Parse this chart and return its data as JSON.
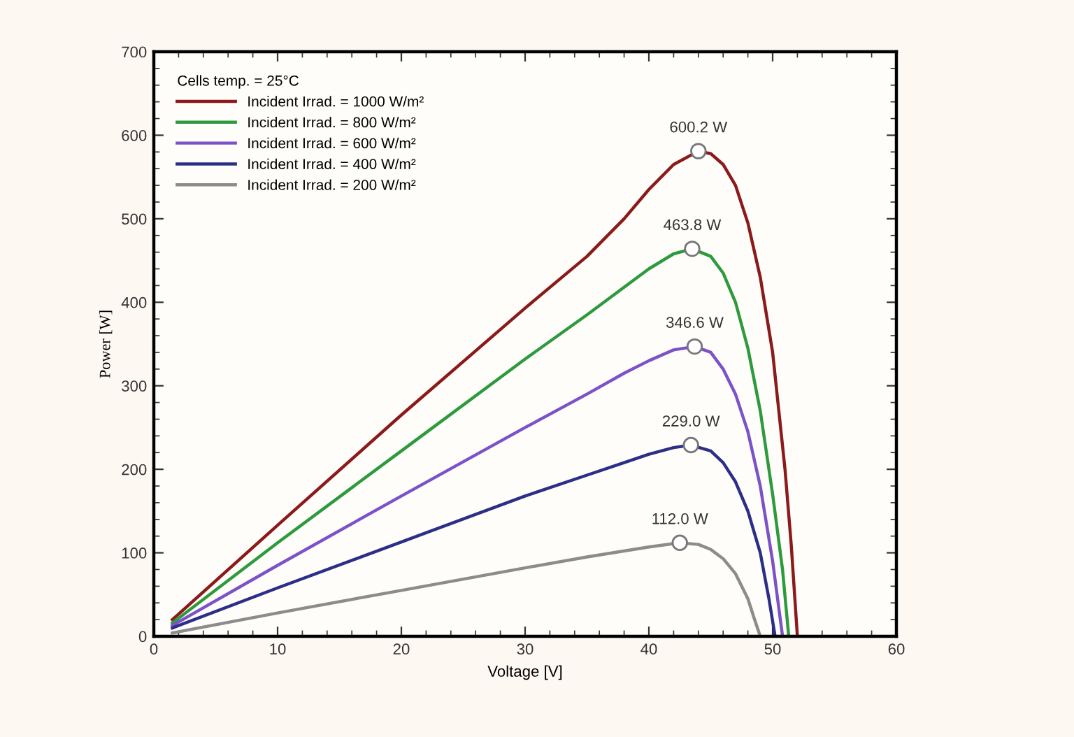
{
  "chart_data": {
    "type": "line",
    "xlabel": "Voltage [V]",
    "ylabel": "Power [W]",
    "legend_title": "Cells temp. = 25°C",
    "legend": "top left",
    "grid": false,
    "marker": "none",
    "line_style": "solid",
    "xlim": [
      0,
      60
    ],
    "xticks": [
      0,
      10,
      20,
      30,
      40,
      50,
      60
    ],
    "ylim": [
      0,
      700
    ],
    "yticks": [
      0,
      100,
      200,
      300,
      400,
      500,
      600,
      700
    ],
    "series": [
      {
        "name": "Incident Irrad. = 1000 W/m²",
        "color": "#8b1a1a",
        "x": [
          1.5,
          10,
          20,
          30,
          35,
          38,
          40,
          42,
          44,
          45,
          46,
          47,
          48,
          49,
          50,
          51,
          51.5,
          52
        ],
        "values": [
          20,
          133,
          265,
          393,
          455,
          500,
          535,
          565,
          581,
          578,
          565,
          540,
          495,
          430,
          340,
          200,
          110,
          0
        ]
      },
      {
        "name": "Incident Irrad. = 800 W/m²",
        "color": "#2e9a3e",
        "x": [
          1.5,
          10,
          20,
          30,
          35,
          38,
          40,
          42,
          43.5,
          45,
          46,
          47,
          48,
          49,
          50,
          50.8,
          51.3
        ],
        "values": [
          16,
          112,
          222,
          332,
          385,
          418,
          440,
          458,
          464,
          455,
          435,
          400,
          345,
          270,
          170,
          80,
          0
        ]
      },
      {
        "name": "Incident Irrad. = 600 W/m²",
        "color": "#7b52c7",
        "x": [
          1.5,
          10,
          20,
          30,
          35,
          38,
          40,
          42,
          43.7,
          45,
          46,
          47,
          48,
          49,
          50,
          50.8
        ],
        "values": [
          13,
          85,
          168,
          250,
          290,
          315,
          330,
          343,
          347,
          340,
          320,
          290,
          245,
          180,
          90,
          0
        ]
      },
      {
        "name": "Incident Irrad. = 400 W/m²",
        "color": "#2b2f86",
        "x": [
          1.5,
          10,
          20,
          30,
          35,
          38,
          40,
          42,
          43.4,
          45,
          46,
          47,
          48,
          49,
          49.7,
          50.2
        ],
        "values": [
          10,
          58,
          113,
          168,
          193,
          208,
          218,
          226,
          229,
          222,
          208,
          185,
          150,
          100,
          45,
          0
        ]
      },
      {
        "name": "Incident Irrad. = 200 W/m²",
        "color": "#8c8c8c",
        "x": [
          1.5,
          10,
          20,
          30,
          35,
          40,
          42.5,
          44,
          45,
          46,
          47,
          48,
          48.5,
          49
        ],
        "values": [
          4,
          28,
          55,
          82,
          95,
          107,
          112,
          110,
          104,
          93,
          75,
          45,
          22,
          0
        ]
      },
      {
        "type": "scatter",
        "marker": "circle",
        "color": "#ffffff",
        "x": [
          44,
          43.5,
          43.7,
          43.4,
          42.5
        ],
        "values": [
          581,
          464,
          347,
          229,
          112
        ]
      }
    ],
    "annotations": [
      {
        "text": "600.2 W",
        "x": 44,
        "y": 581
      },
      {
        "text": "463.8 W",
        "x": 43.5,
        "y": 464
      },
      {
        "text": "346.6 W",
        "x": 43.7,
        "y": 347
      },
      {
        "text": "229.0 W",
        "x": 43.4,
        "y": 229
      },
      {
        "text": "112.0 W",
        "x": 42.5,
        "y": 112
      }
    ]
  }
}
